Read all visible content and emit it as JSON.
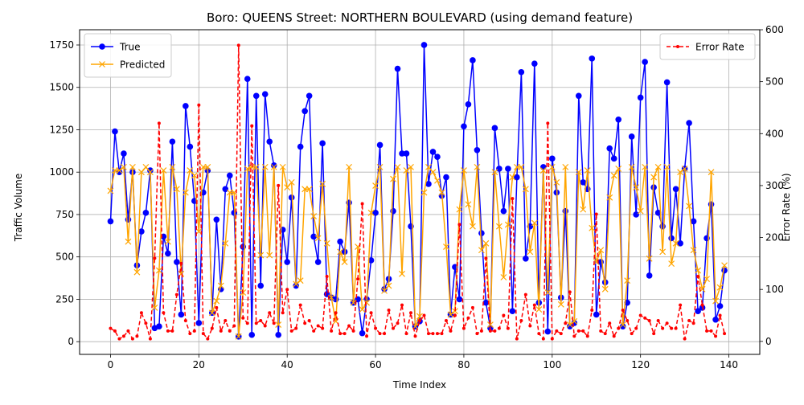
{
  "chart_data": {
    "type": "line",
    "title": "Boro: QUEENS Street: NORTHERN BOULEVARD (using demand feature)",
    "xlabel": "Time Index",
    "ylabel": "Traffic Volume",
    "y2label": "Error Rate (%)",
    "xlim": [
      -7,
      147
    ],
    "ylim": [
      -75,
      1840
    ],
    "y2lim": [
      -25,
      600
    ],
    "xticks": [
      0,
      20,
      40,
      60,
      80,
      100,
      120,
      140
    ],
    "yticks": [
      0,
      250,
      500,
      750,
      1000,
      1250,
      1500,
      1750
    ],
    "y2ticks": [
      0,
      100,
      200,
      300,
      400,
      500,
      600
    ],
    "grid": true,
    "legend_left": "upper-left",
    "legend_right": "upper-right",
    "series": [
      {
        "name": "True",
        "axis": "left",
        "color": "#0000ff",
        "marker": "circle",
        "values": [
          710,
          1240,
          1000,
          1110,
          720,
          1000,
          450,
          650,
          760,
          1010,
          80,
          90,
          620,
          520,
          1180,
          470,
          160,
          1390,
          1150,
          830,
          110,
          880,
          1010,
          170,
          720,
          310,
          900,
          980,
          760,
          30,
          560,
          1550,
          40,
          1450,
          330,
          1460,
          1180,
          1040,
          40,
          660,
          470,
          850,
          330,
          1150,
          1360,
          1450,
          620,
          470,
          1170,
          280,
          260,
          250,
          590,
          530,
          820,
          230,
          250,
          50,
          250,
          480,
          760,
          1160,
          310,
          370,
          770,
          1610,
          1110,
          1110,
          680,
          90,
          120,
          1750,
          930,
          1120,
          1090,
          860,
          970,
          160,
          440,
          250,
          1270,
          1400,
          1660,
          1130,
          640,
          230,
          80,
          1260,
          1020,
          770,
          1020,
          180,
          970,
          1590,
          490,
          680,
          1640,
          230,
          1030,
          60,
          1080,
          880,
          260,
          770,
          90,
          110,
          1450,
          940,
          900,
          1670,
          160,
          470,
          350,
          1140,
          1080,
          1310,
          90,
          230,
          1210,
          750,
          1440,
          1650,
          390,
          910,
          760,
          680,
          1530,
          610,
          900,
          580,
          1020,
          1290,
          710,
          180,
          200,
          610,
          810,
          130,
          210,
          420
        ]
      },
      {
        "name": "Predicted",
        "axis": "left",
        "color": "#ffa500",
        "marker": "x",
        "values": [
          890,
          1010,
          1010,
          1030,
          590,
          1030,
          410,
          1000,
          1030,
          1000,
          200,
          420,
          1010,
          590,
          1030,
          900,
          400,
          880,
          1010,
          980,
          650,
          1030,
          1030,
          170,
          240,
          330,
          580,
          880,
          880,
          30,
          290,
          1020,
          1030,
          1030,
          510,
          1030,
          510,
          1030,
          100,
          1030,
          910,
          940,
          340,
          360,
          900,
          900,
          740,
          610,
          930,
          580,
          260,
          120,
          530,
          470,
          1030,
          230,
          560,
          190,
          230,
          760,
          920,
          1030,
          300,
          330,
          960,
          1030,
          400,
          1010,
          1030,
          90,
          150,
          880,
          1030,
          1000,
          950,
          880,
          560,
          160,
          180,
          780,
          1010,
          810,
          680,
          1030,
          540,
          580,
          100,
          1000,
          680,
          380,
          690,
          970,
          1030,
          1030,
          900,
          530,
          700,
          190,
          1010,
          290,
          1030,
          940,
          220,
          1030,
          100,
          120,
          1000,
          780,
          1010,
          670,
          470,
          540,
          310,
          850,
          980,
          1020,
          100,
          360,
          1030,
          910,
          770,
          1030,
          490,
          970,
          1030,
          530,
          1030,
          460,
          580,
          1000,
          1020,
          800,
          540,
          420,
          310,
          370,
          1000,
          240,
          320,
          450
        ]
      },
      {
        "name": "Error Rate",
        "axis": "right",
        "color": "#ff0000",
        "marker": "dot",
        "linestyle": "dashed",
        "values": [
          25,
          20,
          5,
          10,
          20,
          5,
          10,
          55,
          35,
          5,
          160,
          420,
          55,
          20,
          20,
          90,
          150,
          40,
          15,
          20,
          455,
          15,
          5,
          25,
          65,
          20,
          40,
          20,
          30,
          570,
          45,
          35,
          415,
          35,
          40,
          30,
          55,
          35,
          300,
          55,
          100,
          20,
          25,
          70,
          35,
          40,
          20,
          30,
          25,
          125,
          20,
          55,
          15,
          15,
          30,
          20,
          120,
          265,
          10,
          55,
          25,
          15,
          15,
          60,
          25,
          35,
          70,
          15,
          55,
          10,
          40,
          50,
          15,
          15,
          15,
          15,
          40,
          20,
          50,
          225,
          25,
          45,
          65,
          15,
          20,
          160,
          20,
          20,
          25,
          50,
          25,
          275,
          5,
          40,
          90,
          30,
          70,
          15,
          5,
          420,
          5,
          20,
          15,
          35,
          95,
          10,
          20,
          20,
          10,
          60,
          245,
          20,
          15,
          35,
          10,
          25,
          60,
          40,
          15,
          25,
          50,
          45,
          40,
          15,
          40,
          25,
          35,
          25,
          25,
          70,
          5,
          40,
          35,
          125,
          70,
          20,
          20,
          10,
          50,
          15
        ]
      }
    ]
  }
}
